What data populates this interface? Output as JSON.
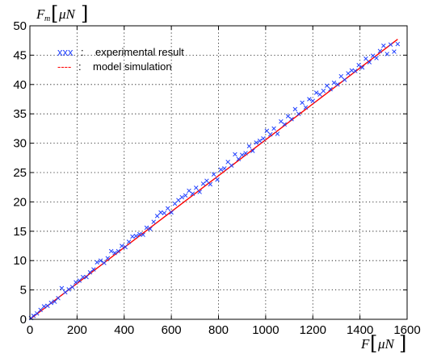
{
  "chart_data": {
    "type": "scatter",
    "x_axis": {
      "label_main": "F",
      "label_unit": "μN",
      "range": [
        0,
        1600
      ],
      "ticks": [
        0,
        200,
        400,
        600,
        800,
        1000,
        1200,
        1400,
        1600
      ]
    },
    "y_axis": {
      "label_main": "F",
      "label_subscript": "m",
      "label_unit": "μN",
      "range": [
        0,
        50
      ],
      "ticks": [
        0,
        5,
        10,
        15,
        20,
        25,
        30,
        35,
        40,
        45,
        50
      ]
    },
    "grid": true,
    "grid_style": "dotted",
    "legend_position": "top-left",
    "series": [
      {
        "name": "experimental result",
        "legend_symbol": "xxx",
        "legend_separator": ":",
        "kind": "scatter",
        "marker": "x",
        "color": "#1f3fff",
        "points": [
          [
            5,
            0.2
          ],
          [
            15,
            0.6
          ],
          [
            30,
            1.0
          ],
          [
            45,
            1.6
          ],
          [
            60,
            2.2
          ],
          [
            75,
            2.3
          ],
          [
            90,
            2.8
          ],
          [
            105,
            3.0
          ],
          [
            120,
            3.6
          ],
          [
            135,
            5.3
          ],
          [
            150,
            4.6
          ],
          [
            165,
            5.1
          ],
          [
            180,
            5.5
          ],
          [
            195,
            6.3
          ],
          [
            210,
            6.6
          ],
          [
            225,
            7.2
          ],
          [
            240,
            7.2
          ],
          [
            255,
            8.0
          ],
          [
            270,
            8.5
          ],
          [
            285,
            9.7
          ],
          [
            300,
            10.0
          ],
          [
            315,
            9.6
          ],
          [
            330,
            10.4
          ],
          [
            345,
            11.6
          ],
          [
            360,
            11.3
          ],
          [
            375,
            11.6
          ],
          [
            390,
            12.5
          ],
          [
            405,
            12.3
          ],
          [
            420,
            13.2
          ],
          [
            435,
            14.1
          ],
          [
            450,
            14.2
          ],
          [
            465,
            14.5
          ],
          [
            480,
            14.4
          ],
          [
            495,
            15.6
          ],
          [
            510,
            15.4
          ],
          [
            525,
            16.6
          ],
          [
            540,
            17.6
          ],
          [
            555,
            18.2
          ],
          [
            570,
            18.1
          ],
          [
            585,
            18.9
          ],
          [
            600,
            18.2
          ],
          [
            615,
            19.7
          ],
          [
            630,
            20.3
          ],
          [
            645,
            20.8
          ],
          [
            660,
            21.1
          ],
          [
            675,
            21.9
          ],
          [
            690,
            21.4
          ],
          [
            705,
            22.4
          ],
          [
            720,
            21.7
          ],
          [
            735,
            23.1
          ],
          [
            750,
            23.6
          ],
          [
            765,
            23.0
          ],
          [
            780,
            24.7
          ],
          [
            795,
            23.8
          ],
          [
            810,
            25.5
          ],
          [
            825,
            25.7
          ],
          [
            840,
            26.8
          ],
          [
            855,
            26.2
          ],
          [
            870,
            28.1
          ],
          [
            885,
            27.3
          ],
          [
            900,
            28.0
          ],
          [
            915,
            28.3
          ],
          [
            930,
            29.5
          ],
          [
            945,
            28.7
          ],
          [
            960,
            30.1
          ],
          [
            975,
            30.4
          ],
          [
            990,
            30.8
          ],
          [
            1005,
            32.1
          ],
          [
            1020,
            31.5
          ],
          [
            1035,
            32.5
          ],
          [
            1050,
            31.6
          ],
          [
            1065,
            33.7
          ],
          [
            1080,
            33.2
          ],
          [
            1095,
            34.6
          ],
          [
            1110,
            34.1
          ],
          [
            1125,
            35.8
          ],
          [
            1140,
            35.0
          ],
          [
            1155,
            36.9
          ],
          [
            1170,
            36.1
          ],
          [
            1185,
            37.5
          ],
          [
            1200,
            37.2
          ],
          [
            1215,
            38.6
          ],
          [
            1230,
            38.3
          ],
          [
            1245,
            38.9
          ],
          [
            1260,
            39.8
          ],
          [
            1275,
            39.2
          ],
          [
            1290,
            40.3
          ],
          [
            1305,
            40.0
          ],
          [
            1320,
            41.4
          ],
          [
            1335,
            40.8
          ],
          [
            1350,
            41.9
          ],
          [
            1365,
            42.4
          ],
          [
            1380,
            42.3
          ],
          [
            1395,
            43.3
          ],
          [
            1410,
            42.9
          ],
          [
            1425,
            44.4
          ],
          [
            1440,
            43.8
          ],
          [
            1455,
            44.9
          ],
          [
            1470,
            44.5
          ],
          [
            1485,
            45.7
          ],
          [
            1500,
            46.6
          ],
          [
            1515,
            45.2
          ],
          [
            1530,
            46.8
          ],
          [
            1545,
            45.6
          ],
          [
            1560,
            46.9
          ]
        ]
      },
      {
        "name": "model simulation",
        "legend_symbol": "----",
        "legend_separator": ":",
        "kind": "line",
        "color": "#ff0000",
        "points": [
          [
            0,
            0
          ],
          [
            1560,
            47.7
          ]
        ]
      }
    ]
  }
}
